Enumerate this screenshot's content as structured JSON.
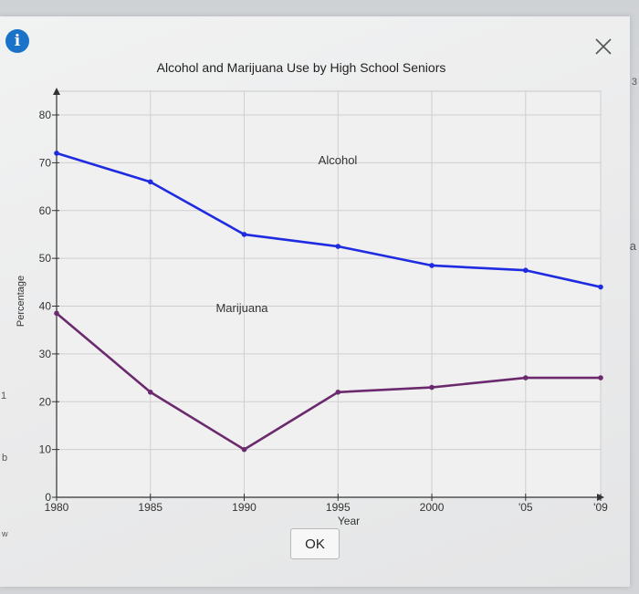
{
  "dialog": {
    "ok_label": "OK"
  },
  "chart_data": {
    "type": "line",
    "title": "Alcohol and Marijuana Use by High School Seniors",
    "xlabel": "Year",
    "ylabel": "Percentage",
    "x": [
      1980,
      1985,
      1990,
      1995,
      2000,
      2005,
      2009
    ],
    "x_tick_labels": [
      "1980",
      "1985",
      "1990",
      "1995",
      "2000",
      "'05",
      "'09"
    ],
    "y_ticks": [
      0,
      10,
      20,
      30,
      40,
      50,
      60,
      70,
      80
    ],
    "ylim": [
      0,
      80
    ],
    "grid": true,
    "series": [
      {
        "name": "Alcohol",
        "color": "#1f2be0",
        "values": [
          72,
          66,
          55,
          52.5,
          48.5,
          47.5,
          44
        ]
      },
      {
        "name": "Marijuana",
        "color": "#6b2a6e",
        "values": [
          38.5,
          22,
          10,
          22,
          23,
          25,
          25
        ]
      }
    ]
  },
  "edge_letters": [
    "a",
    "b",
    "w",
    "3",
    "1"
  ]
}
